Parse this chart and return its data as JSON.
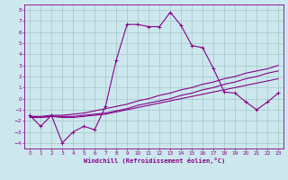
{
  "xlabel": "Windchill (Refroidissement éolien,°C)",
  "background_color": "#cce8ee",
  "grid_color": "#aacccc",
  "line_color": "#880088",
  "xlim": [
    -0.5,
    23.5
  ],
  "ylim": [
    -4.5,
    8.5
  ],
  "xticks": [
    0,
    1,
    2,
    3,
    4,
    5,
    6,
    7,
    8,
    9,
    10,
    11,
    12,
    13,
    14,
    15,
    16,
    17,
    18,
    19,
    20,
    21,
    22,
    23
  ],
  "yticks": [
    -4,
    -3,
    -2,
    -1,
    0,
    1,
    2,
    3,
    4,
    5,
    6,
    7,
    8
  ],
  "line1_x": [
    0,
    1,
    2,
    3,
    4,
    5,
    6,
    7,
    8,
    9,
    10,
    11,
    12,
    13,
    14,
    15,
    16,
    17,
    18,
    19,
    20,
    21,
    22,
    23
  ],
  "line1_y": [
    -1.5,
    -2.5,
    -1.5,
    -4.0,
    -3.0,
    -2.5,
    -2.8,
    -0.7,
    3.5,
    6.7,
    6.7,
    6.5,
    6.5,
    7.8,
    6.6,
    4.8,
    4.6,
    2.7,
    0.6,
    0.5,
    -0.3,
    -1.0,
    -0.3,
    0.5
  ],
  "line2_x": [
    0,
    1,
    2,
    3,
    4,
    5,
    6,
    7,
    8,
    9,
    10,
    11,
    12,
    13,
    14,
    15,
    16,
    17,
    18,
    19,
    20,
    21,
    22,
    23
  ],
  "line2_y": [
    -1.6,
    -1.6,
    -1.5,
    -1.5,
    -1.4,
    -1.3,
    -1.1,
    -0.9,
    -0.7,
    -0.5,
    -0.2,
    0.0,
    0.3,
    0.5,
    0.8,
    1.0,
    1.3,
    1.5,
    1.8,
    2.0,
    2.3,
    2.5,
    2.7,
    3.0
  ],
  "line3_x": [
    0,
    1,
    2,
    3,
    4,
    5,
    6,
    7,
    8,
    9,
    10,
    11,
    12,
    13,
    14,
    15,
    16,
    17,
    18,
    19,
    20,
    21,
    22,
    23
  ],
  "line3_y": [
    -1.7,
    -1.7,
    -1.6,
    -1.7,
    -1.7,
    -1.6,
    -1.5,
    -1.4,
    -1.2,
    -1.0,
    -0.8,
    -0.6,
    -0.4,
    -0.2,
    0.0,
    0.2,
    0.4,
    0.6,
    0.8,
    1.0,
    1.2,
    1.4,
    1.6,
    1.8
  ],
  "line4_x": [
    0,
    1,
    2,
    3,
    4,
    5,
    6,
    7,
    8,
    9,
    10,
    11,
    12,
    13,
    14,
    15,
    16,
    17,
    18,
    19,
    20,
    21,
    22,
    23
  ],
  "line4_y": [
    -1.6,
    -1.7,
    -1.6,
    -1.6,
    -1.6,
    -1.5,
    -1.4,
    -1.3,
    -1.1,
    -0.9,
    -0.6,
    -0.4,
    -0.2,
    0.0,
    0.3,
    0.5,
    0.8,
    1.0,
    1.3,
    1.5,
    1.8,
    2.0,
    2.3,
    2.5
  ]
}
